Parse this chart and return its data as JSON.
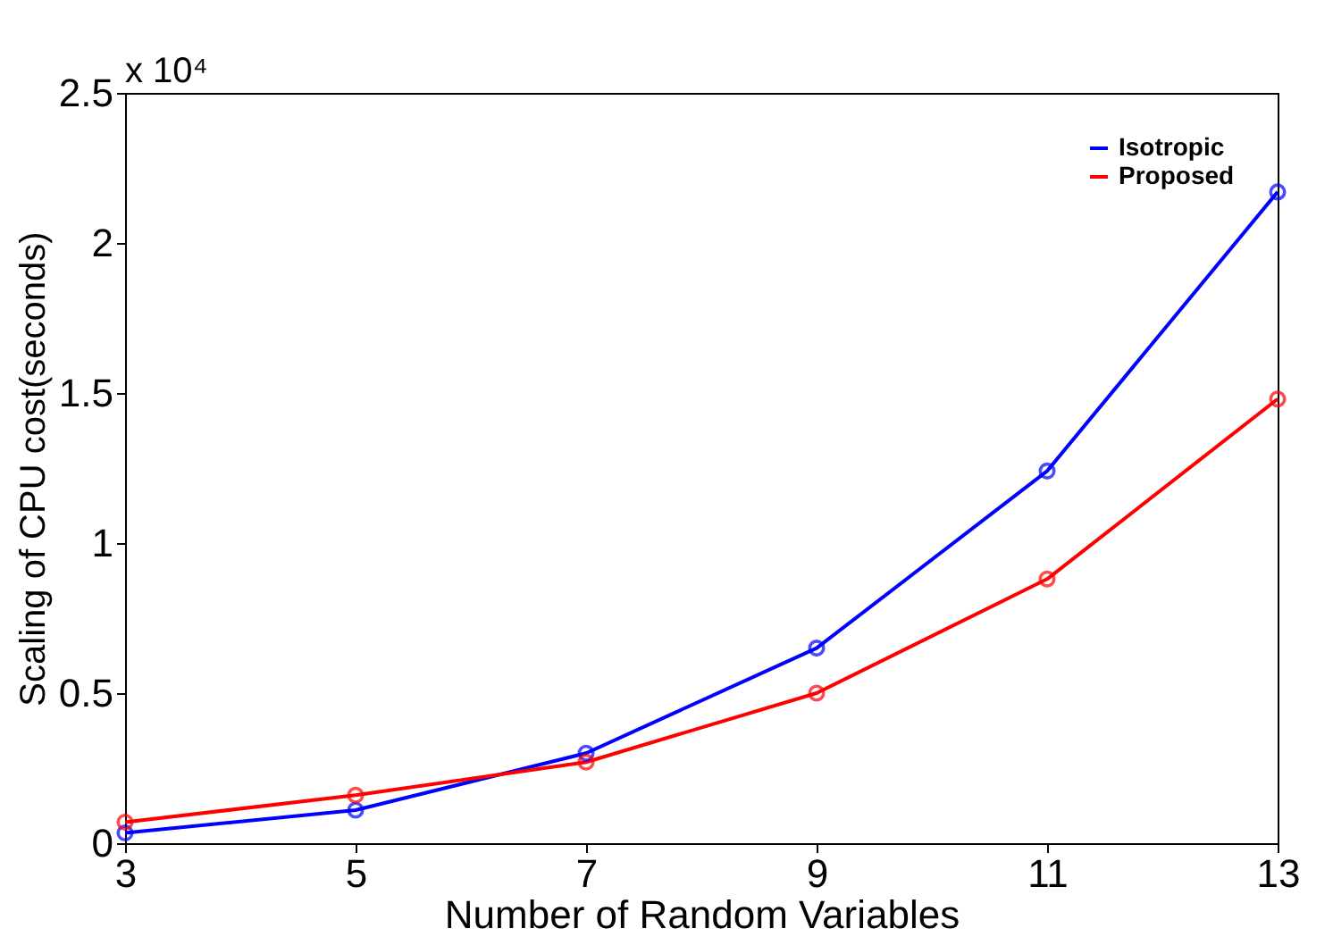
{
  "chart_data": {
    "type": "line",
    "xlabel": "Number of Random Variables",
    "ylabel": "Scaling of CPU cost(seconds)",
    "x": [
      3,
      5,
      7,
      9,
      11,
      13
    ],
    "series": [
      {
        "name": "Isotropic",
        "color": "#0000ff",
        "values": [
          0.034,
          0.11,
          0.3,
          0.65,
          1.24,
          2.17
        ]
      },
      {
        "name": "Proposed",
        "color": "#ff0000",
        "values": [
          0.07,
          0.16,
          0.27,
          0.5,
          0.88,
          1.48
        ]
      }
    ],
    "xlim": [
      3,
      13
    ],
    "xticks": [
      3,
      5,
      7,
      9,
      11,
      13
    ],
    "ylim": [
      0,
      2.5
    ],
    "yticks": [
      0,
      0.5,
      1,
      1.5,
      2,
      2.5
    ],
    "annotations": [
      "x 10⁴"
    ],
    "legend": "top right",
    "grid": false,
    "marker": "circle",
    "line_style": "solid"
  }
}
